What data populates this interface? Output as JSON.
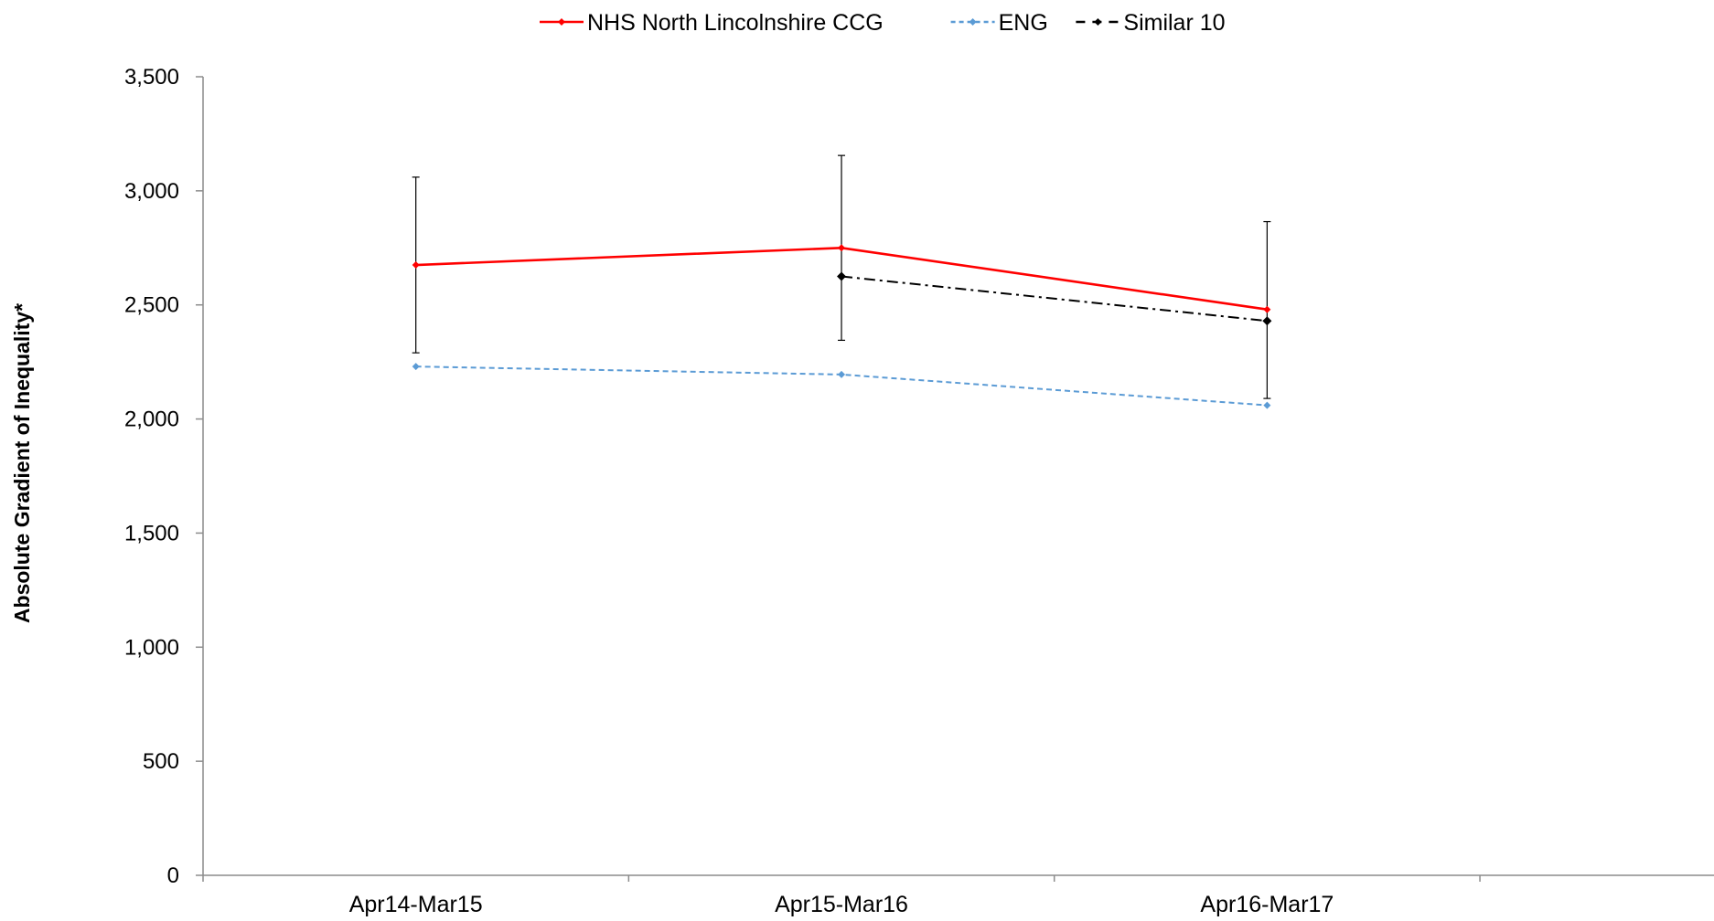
{
  "chart_data": {
    "type": "line",
    "title": "",
    "xlabel": "",
    "ylabel": "Absolute Gradient of Inequality*",
    "categories": [
      "Apr14-Mar15",
      "Apr15-Mar16",
      "Apr16-Mar17"
    ],
    "ylim": [
      0,
      3500
    ],
    "yticks": [
      0,
      500,
      1000,
      1500,
      2000,
      2500,
      3000,
      3500
    ],
    "ytick_labels": [
      "0",
      "500",
      "1,000",
      "1,500",
      "2,000",
      "2,500",
      "3,000",
      "3,500"
    ],
    "grid": false,
    "legend_position": "top",
    "series": [
      {
        "name": "NHS North Lincolnshire CCG",
        "color": "#ff0000",
        "line_style": "solid",
        "marker": "diamond",
        "values": [
          2675,
          2750,
          2480
        ],
        "error_low": [
          2290,
          2345,
          2090
        ],
        "error_high": [
          3060,
          3155,
          2865
        ]
      },
      {
        "name": "ENG",
        "color": "#5b9bd5",
        "line_style": "dashed",
        "marker": "diamond",
        "values": [
          2230,
          2195,
          2060
        ]
      },
      {
        "name": "Similar 10",
        "color": "#000000",
        "line_style": "dash-dot",
        "marker": "diamond",
        "values": [
          null,
          2625,
          2430
        ]
      }
    ]
  }
}
